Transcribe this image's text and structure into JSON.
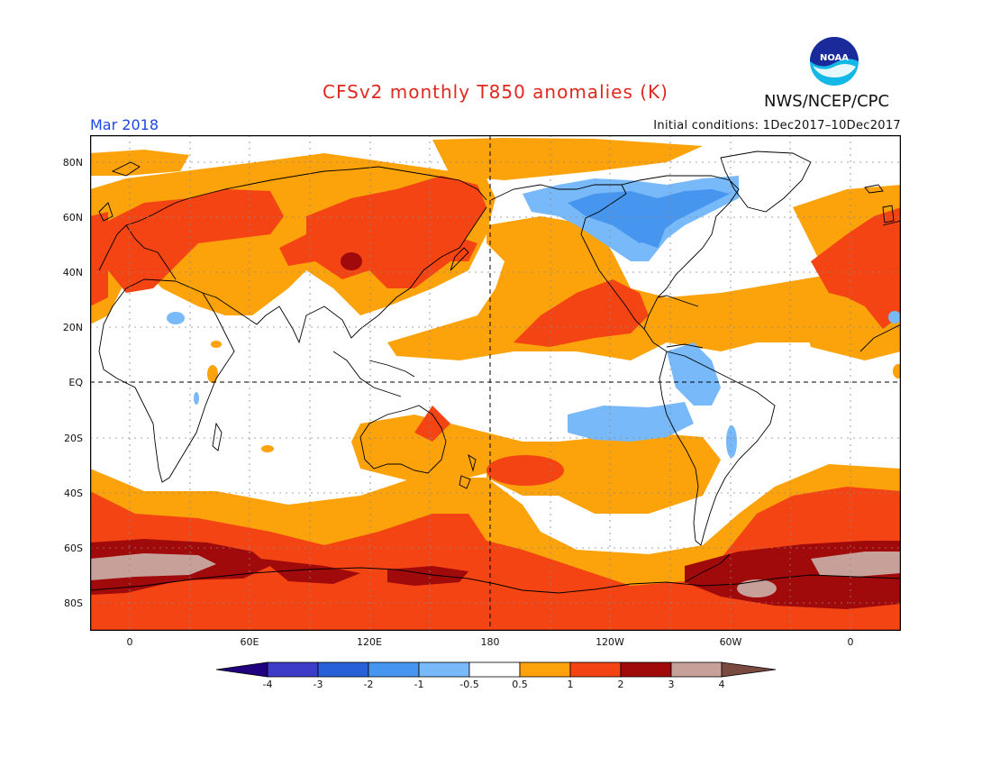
{
  "header": {
    "title": "CFSv2 monthly T850 anomalies (K)",
    "month": "Mar 2018",
    "initial_conditions": "Initial conditions: 1Dec2017–10Dec2017",
    "agency": "NWS/NCEP/CPC",
    "logo_text": "NOAA"
  },
  "axes": {
    "lat_labels": [
      "80N",
      "60N",
      "40N",
      "20N",
      "EQ",
      "20S",
      "40S",
      "60S",
      "80S"
    ],
    "lon_labels": [
      "0",
      "60E",
      "120E",
      "180",
      "120W",
      "60W",
      "0"
    ]
  },
  "colorbar": {
    "labels": [
      "-4",
      "-3",
      "-2",
      "-1",
      "-0.5",
      "0.5",
      "1",
      "2",
      "3",
      "4"
    ],
    "colors": {
      "lt_-4": "#200080",
      "n4_n3": "#3c3cc8",
      "n3_n2": "#2860d8",
      "n2_n1": "#4696f0",
      "n1_n05": "#78b9fa",
      "n05_05": "#ffffff",
      "p05_1": "#fca20a",
      "p1_2": "#f44414",
      "p2_3": "#a00a0a",
      "p3_4": "#c8a09a",
      "gt_4": "#7a4a40"
    }
  }
}
